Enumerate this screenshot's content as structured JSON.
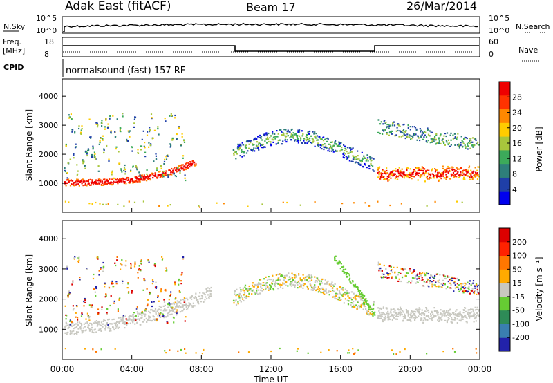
{
  "header": {
    "station": "Adak East (fitACF)",
    "beam": "Beam 17",
    "date": "26/Mar/2014"
  },
  "top_panels": {
    "nsky_label": "N.Sky",
    "nsearch_label": "N.Search",
    "nsky_ticks": [
      "10^5",
      "10^0"
    ],
    "nsearch_ticks": [
      "10^5",
      "10^0"
    ],
    "freq_label_line1": "Freq.",
    "freq_label_line2": "[MHz]",
    "freq_ticks": [
      "18",
      "8"
    ],
    "nave_label": "Nave",
    "nave_ticks": [
      "60",
      "0"
    ],
    "cpid_label": "CPID",
    "cpid_text": "normalsound (fast) 157 RF"
  },
  "chart_data": [
    {
      "type": "heatmap",
      "panel": "power",
      "ylabel": "Slant Range [km]",
      "xlabel": "Time UT",
      "x_ticks": [
        "00:00",
        "04:00",
        "08:00",
        "12:00",
        "16:00",
        "20:00",
        "00:00"
      ],
      "y_ticks": [
        1000,
        2000,
        3000,
        4000
      ],
      "ylim": [
        0,
        4600
      ],
      "xlim_hours": [
        0,
        24
      ],
      "colorbar_label": "Power [dB]",
      "colorbar_ticks": [
        "28",
        "24",
        "20",
        "16",
        "12",
        "8",
        "4"
      ],
      "colors": [
        "#0000ee",
        "#1f3fa8",
        "#2e7f7a",
        "#3caa5a",
        "#a8c63c",
        "#ffcc00",
        "#ff8800",
        "#ff3300",
        "#ee0000"
      ]
    },
    {
      "type": "heatmap",
      "panel": "velocity",
      "ylabel": "Slant Range [km]",
      "xlabel": "Time UT",
      "x_ticks": [
        "00:00",
        "04:00",
        "08:00",
        "12:00",
        "16:00",
        "20:00",
        "00:00"
      ],
      "y_ticks": [
        1000,
        2000,
        3000,
        4000
      ],
      "ylim": [
        0,
        4600
      ],
      "xlim_hours": [
        0,
        24
      ],
      "colorbar_label": "Velocity [m s⁻¹]",
      "colorbar_ticks": [
        "200",
        "100",
        "50",
        "15",
        "-15",
        "-50",
        "-100",
        "-200"
      ],
      "colors": [
        "#2222aa",
        "#3a7fb0",
        "#2e8b57",
        "#66cc33",
        "#c8c8c0",
        "#ffaa00",
        "#ff7700",
        "#ff2200",
        "#dd0000"
      ]
    }
  ]
}
